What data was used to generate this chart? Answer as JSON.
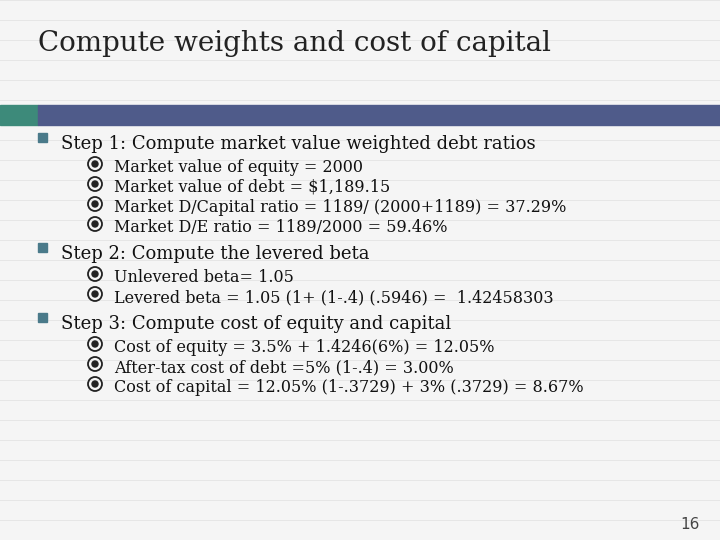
{
  "title": "Compute weights and cost of capital",
  "slide_bg": "#f5f5f5",
  "header_bar_color": "#4f5b8a",
  "header_bar_accent": "#3d8a7a",
  "title_fontsize": 20,
  "step_fontsize": 13,
  "sub_fontsize": 11.5,
  "step_color": "#111111",
  "sub_color": "#111111",
  "title_color": "#222222",
  "square_bullet_color": "#4a7a8a",
  "page_number": "16",
  "stripe_color": "#e6e6e6",
  "steps": [
    {
      "label": "Step 1: Compute market value weighted debt ratios",
      "subs": [
        "Market value of equity = 2000",
        "Market value of debt = $1,189.15",
        "Market D/Capital ratio = 1189/ (2000+1189) = 37.29%",
        "Market D/E ratio = 1189/2000 = 59.46%"
      ]
    },
    {
      "label": "Step 2: Compute the levered beta",
      "subs": [
        "Unlevered beta= 1.05",
        "Levered beta = 1.05 (1+ (1-.4) (.5946) =  1.42458303"
      ]
    },
    {
      "label": "Step 3: Compute cost of equity and capital",
      "subs": [
        "Cost of equity = 3.5% + 1.4246(6%) = 12.05%",
        "After-tax cost of debt =5% (1-.4) = 3.00%",
        "Cost of capital = 12.05% (1-.3729) + 3% (.3729) = 8.67%"
      ]
    }
  ]
}
